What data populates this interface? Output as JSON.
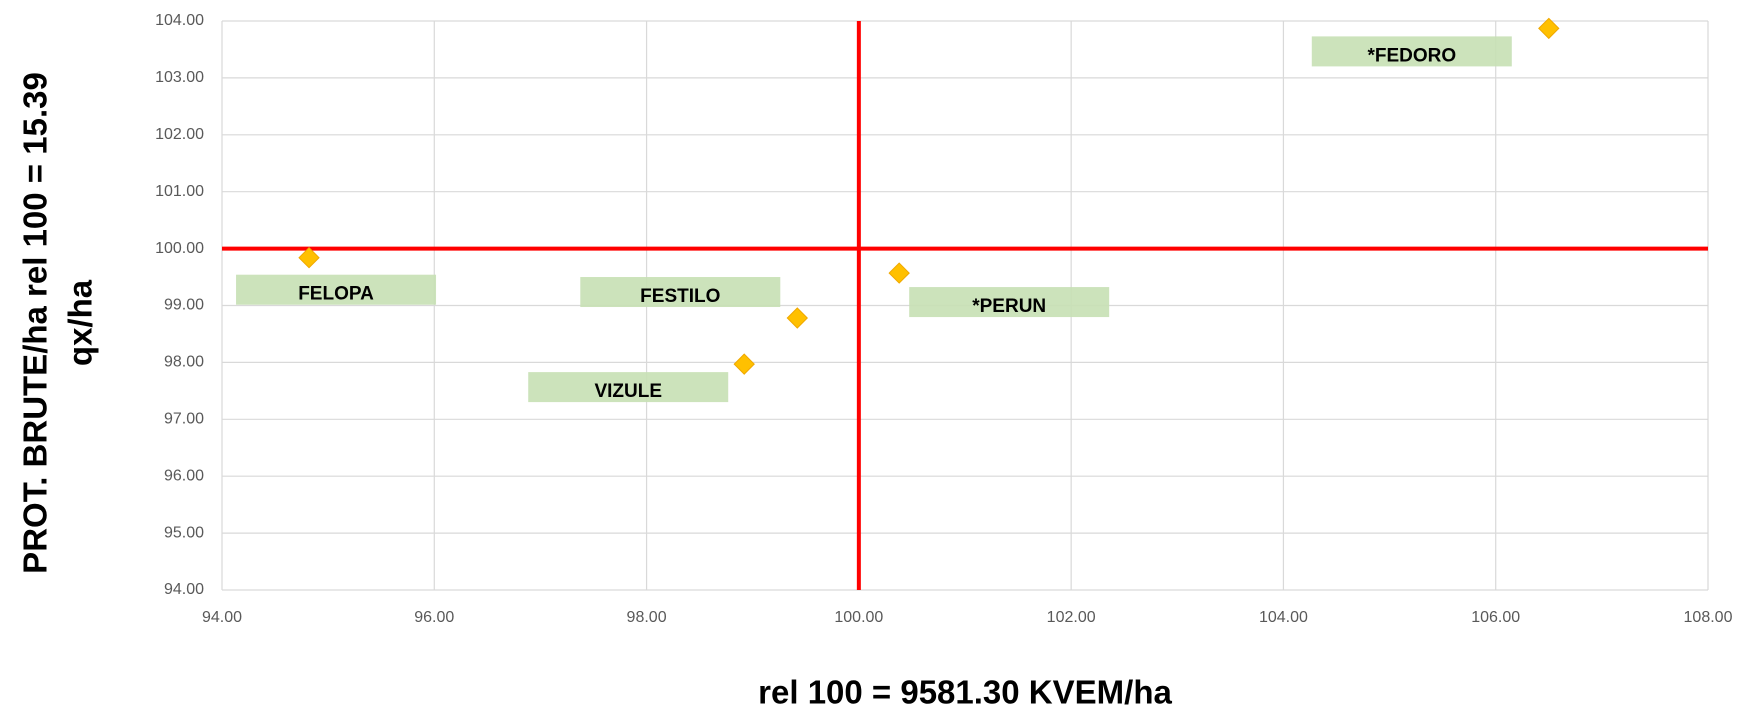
{
  "chart_data": {
    "type": "scatter",
    "xlabel": "rel 100 = 9581.30 KVEM/ha",
    "ylabel": [
      "PROT. BRUTE/ha  rel 100 = 15.39",
      "qx/ha"
    ],
    "labels": [
      "FELOPA",
      "FESTILO",
      "VIZULE",
      "*PERUN",
      "*FEDORO"
    ],
    "x": [
      94.82,
      99.42,
      98.92,
      100.38,
      106.5
    ],
    "y": [
      99.84,
      98.78,
      97.97,
      99.57,
      103.87
    ],
    "color": "#ffc000",
    "label_box_color": "#c6e0b4",
    "xlim": [
      94,
      108
    ],
    "xticks": [
      {
        "value": 94,
        "label": "94.00"
      },
      {
        "value": 96,
        "label": "96.00"
      },
      {
        "value": 98,
        "label": "98.00"
      },
      {
        "value": 100,
        "label": "100.00"
      },
      {
        "value": 102,
        "label": "102.00"
      },
      {
        "value": 104,
        "label": "104.00"
      },
      {
        "value": 106,
        "label": "106.00"
      },
      {
        "value": 108,
        "label": "108.00"
      }
    ],
    "ylim": [
      94,
      104
    ],
    "yticks": [
      {
        "value": 94,
        "label": "94.00"
      },
      {
        "value": 95,
        "label": "95.00"
      },
      {
        "value": 96,
        "label": "96.00"
      },
      {
        "value": 97,
        "label": "97.00"
      },
      {
        "value": 98,
        "label": "98.00"
      },
      {
        "value": 99,
        "label": "99.00"
      },
      {
        "value": 100,
        "label": "100.00"
      },
      {
        "value": 101,
        "label": "101.00"
      },
      {
        "value": 102,
        "label": "102.00"
      },
      {
        "value": 103,
        "label": "103.00"
      },
      {
        "value": 104,
        "label": "104.00"
      }
    ],
    "grid": true,
    "reference_lines": {
      "x": 100,
      "y": 100,
      "color": "#ff0000"
    }
  }
}
